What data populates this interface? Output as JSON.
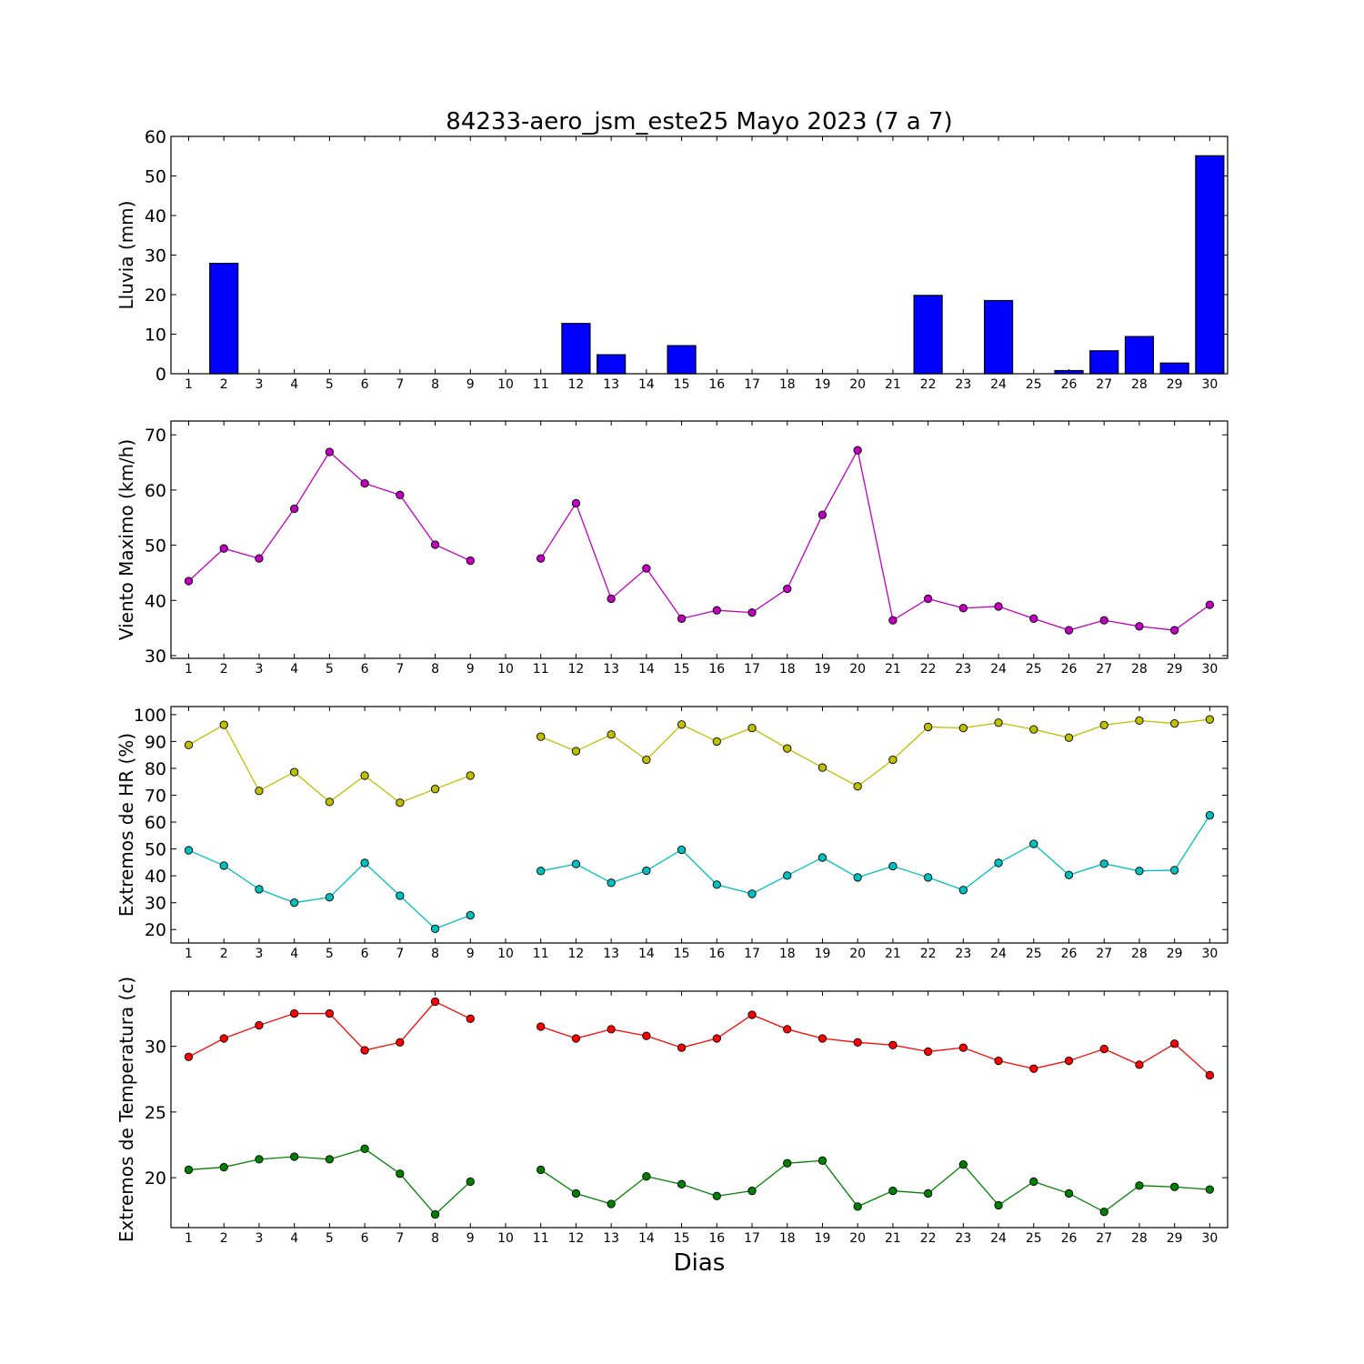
{
  "chart_data": [
    {
      "type": "bar",
      "title": "84233-aero_jsm_este25 Mayo 2023  (7 a 7)",
      "xlabel": "",
      "ylabel": "Lluvia (mm)",
      "categories": [
        "1",
        "2",
        "3",
        "4",
        "5",
        "6",
        "7",
        "8",
        "9",
        "10",
        "11",
        "12",
        "13",
        "14",
        "15",
        "16",
        "17",
        "18",
        "19",
        "20",
        "21",
        "22",
        "23",
        "24",
        "25",
        "26",
        "27",
        "28",
        "29",
        "30"
      ],
      "values": [
        0,
        27.9,
        0,
        0,
        0,
        0,
        0,
        0,
        0,
        null,
        0,
        12.7,
        4.8,
        0,
        7.1,
        0,
        0,
        0,
        0,
        0,
        0,
        19.8,
        0,
        18.5,
        0,
        0.8,
        5.8,
        9.4,
        2.7,
        55.1
      ],
      "ylim": [
        0,
        60
      ],
      "yticks": [
        0,
        10,
        20,
        30,
        40,
        50,
        60
      ],
      "color": "#0000ff"
    },
    {
      "type": "line",
      "xlabel": "",
      "ylabel": "Viento Maximo (km/h)",
      "categories": [
        "1",
        "2",
        "3",
        "4",
        "5",
        "6",
        "7",
        "8",
        "9",
        "10",
        "11",
        "12",
        "13",
        "14",
        "15",
        "16",
        "17",
        "18",
        "19",
        "20",
        "21",
        "22",
        "23",
        "24",
        "25",
        "26",
        "27",
        "28",
        "29",
        "30"
      ],
      "series": [
        {
          "color": "#bf00bf",
          "values": [
            43.5,
            49.4,
            47.6,
            56.6,
            66.9,
            61.2,
            59.1,
            50.1,
            47.2,
            null,
            47.6,
            57.6,
            40.3,
            45.8,
            36.7,
            38.2,
            37.8,
            42.1,
            55.5,
            67.2,
            36.4,
            40.3,
            38.6,
            38.9,
            36.7,
            34.6,
            36.4,
            35.3,
            34.6,
            39.2
          ]
        }
      ],
      "ylim": [
        29.5,
        72.5
      ],
      "yticks": [
        30,
        40,
        50,
        60,
        70
      ]
    },
    {
      "type": "line",
      "xlabel": "",
      "ylabel": "Extremos de HR (%)",
      "categories": [
        "1",
        "2",
        "3",
        "4",
        "5",
        "6",
        "7",
        "8",
        "9",
        "10",
        "11",
        "12",
        "13",
        "14",
        "15",
        "16",
        "17",
        "18",
        "19",
        "20",
        "21",
        "22",
        "23",
        "24",
        "25",
        "26",
        "27",
        "28",
        "29",
        "30"
      ],
      "series": [
        {
          "color": "#bfbf00",
          "values": [
            88.7,
            96.2,
            71.6,
            78.6,
            67.5,
            77.3,
            67.2,
            72.3,
            77.3,
            null,
            91.8,
            86.4,
            92.6,
            83.2,
            96.3,
            90.0,
            95.0,
            87.4,
            80.3,
            73.3,
            83.2,
            95.4,
            95.0,
            97.0,
            94.5,
            91.4,
            96.1,
            97.8,
            96.7,
            98.2
          ]
        },
        {
          "color": "#00bfbf",
          "values": [
            49.5,
            43.8,
            35.0,
            30.0,
            32.0,
            44.8,
            32.6,
            20.3,
            25.3,
            null,
            41.8,
            44.4,
            37.4,
            41.9,
            49.7,
            36.7,
            33.3,
            40.1,
            46.8,
            39.4,
            43.6,
            39.4,
            34.7,
            44.8,
            51.9,
            40.3,
            44.5,
            41.8,
            42.1,
            62.5
          ]
        }
      ],
      "ylim": [
        15,
        103
      ],
      "yticks": [
        20,
        30,
        40,
        50,
        60,
        70,
        80,
        90,
        100
      ]
    },
    {
      "type": "line",
      "xlabel": "Dias",
      "ylabel": "Extremos de Temperatura (c)",
      "categories": [
        "1",
        "2",
        "3",
        "4",
        "5",
        "6",
        "7",
        "8",
        "9",
        "10",
        "11",
        "12",
        "13",
        "14",
        "15",
        "16",
        "17",
        "18",
        "19",
        "20",
        "21",
        "22",
        "23",
        "24",
        "25",
        "26",
        "27",
        "28",
        "29",
        "30"
      ],
      "series": [
        {
          "color": "#ff0000",
          "values": [
            29.2,
            30.6,
            31.6,
            32.5,
            32.5,
            29.7,
            30.3,
            33.4,
            32.1,
            null,
            31.5,
            30.6,
            31.3,
            30.8,
            29.9,
            30.6,
            32.4,
            31.3,
            30.6,
            30.3,
            30.1,
            29.6,
            29.9,
            28.9,
            28.3,
            28.9,
            29.8,
            28.6,
            30.2,
            27.8
          ]
        },
        {
          "color": "#008000",
          "values": [
            20.6,
            20.8,
            21.4,
            21.6,
            21.4,
            22.2,
            20.3,
            17.2,
            19.7,
            null,
            20.6,
            18.8,
            18.0,
            20.1,
            19.5,
            18.6,
            19.0,
            21.1,
            21.3,
            17.8,
            19.0,
            18.8,
            21.0,
            17.9,
            19.7,
            18.8,
            17.4,
            19.4,
            19.3,
            19.1
          ]
        }
      ],
      "ylim": [
        16.2,
        34.2
      ],
      "yticks": [
        20,
        25,
        30
      ]
    }
  ]
}
